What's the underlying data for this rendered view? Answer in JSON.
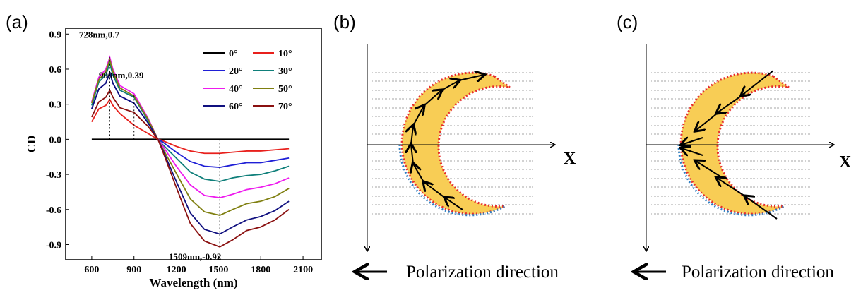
{
  "chart_data": {
    "type": "line",
    "panel_label": "(a)",
    "xlabel": "Wavelength (nm)",
    "ylabel": "CD",
    "x": [
      600,
      650,
      700,
      728,
      750,
      800,
      900,
      1000,
      1070,
      1100,
      1200,
      1300,
      1400,
      1509,
      1600,
      1700,
      1800,
      1900,
      2000
    ],
    "series": [
      {
        "name": "0°",
        "color": "#000000",
        "values": [
          0,
          0,
          0,
          0,
          0,
          0,
          0,
          0,
          0,
          0,
          0,
          0,
          0,
          0,
          0,
          0,
          0,
          0,
          0
        ]
      },
      {
        "name": "10°",
        "color": "#e8201c",
        "values": [
          0.15,
          0.26,
          0.29,
          0.34,
          0.29,
          0.22,
          0.12,
          0.05,
          0,
          -0.01,
          -0.06,
          -0.1,
          -0.12,
          -0.12,
          -0.11,
          -0.1,
          -0.1,
          -0.09,
          -0.08
        ]
      },
      {
        "name": "20°",
        "color": "#1f1fd6",
        "values": [
          0.26,
          0.43,
          0.48,
          0.57,
          0.48,
          0.37,
          0.31,
          0.14,
          0,
          -0.02,
          -0.11,
          -0.19,
          -0.23,
          -0.24,
          -0.22,
          -0.2,
          -0.2,
          -0.18,
          -0.16
        ]
      },
      {
        "name": "30°",
        "color": "#0f7f7a",
        "values": [
          0.29,
          0.49,
          0.55,
          0.65,
          0.55,
          0.42,
          0.36,
          0.16,
          0,
          -0.04,
          -0.16,
          -0.28,
          -0.34,
          -0.36,
          -0.33,
          -0.31,
          -0.3,
          -0.27,
          -0.23
        ]
      },
      {
        "name": "40°",
        "color": "#ee1bee",
        "values": [
          0.32,
          0.53,
          0.6,
          0.7,
          0.6,
          0.46,
          0.39,
          0.18,
          0,
          -0.05,
          -0.23,
          -0.39,
          -0.48,
          -0.5,
          -0.47,
          -0.43,
          -0.41,
          -0.38,
          -0.33
        ]
      },
      {
        "name": "50°",
        "color": "#7f7f10",
        "values": [
          0.31,
          0.51,
          0.58,
          0.68,
          0.58,
          0.44,
          0.37,
          0.17,
          0,
          -0.07,
          -0.29,
          -0.51,
          -0.62,
          -0.65,
          -0.6,
          -0.55,
          -0.53,
          -0.49,
          -0.42
        ]
      },
      {
        "name": "60°",
        "color": "#10107f",
        "values": [
          0.26,
          0.43,
          0.48,
          0.57,
          0.48,
          0.37,
          0.31,
          0.14,
          0,
          -0.08,
          -0.36,
          -0.63,
          -0.77,
          -0.81,
          -0.75,
          -0.69,
          -0.66,
          -0.61,
          -0.53
        ]
      },
      {
        "name": "70°",
        "color": "#8a1010",
        "values": [
          0.19,
          0.32,
          0.36,
          0.42,
          0.36,
          0.27,
          0.23,
          0.11,
          0,
          -0.09,
          -0.41,
          -0.72,
          -0.87,
          -0.92,
          -0.86,
          -0.78,
          -0.75,
          -0.69,
          -0.6
        ]
      }
    ],
    "annotations": [
      {
        "text": "728nm,0.7",
        "x": 728,
        "y": 0.7
      },
      {
        "text": "900nm,0.39",
        "x": 900,
        "y": 0.39
      },
      {
        "text": "1509nm,-0.92",
        "x": 1509,
        "y": -0.92
      }
    ],
    "xlim": [
      415,
      2230
    ],
    "xticks": [
      600,
      900,
      1200,
      1500,
      1800,
      2100
    ],
    "ylim": [
      -1.03,
      0.95
    ],
    "yticks": [
      0.9,
      0.6,
      0.3,
      {
        "value": 0,
        "label": "0.0"
      },
      -0.3,
      -0.6,
      -0.9
    ]
  },
  "diagrams": [
    {
      "label": "(b)",
      "axis_label": "X",
      "caption": "Polarization direction"
    },
    {
      "label": "(c)",
      "axis_label": "X",
      "caption": "Polarization direction"
    }
  ]
}
